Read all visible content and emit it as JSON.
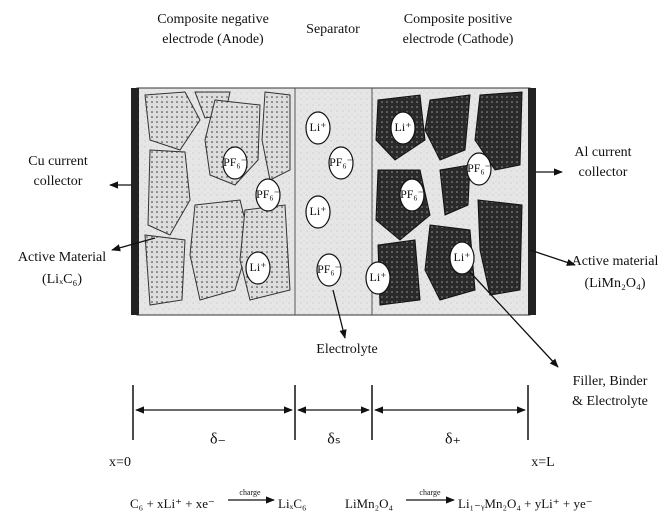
{
  "headers": {
    "anode": [
      "Composite negative",
      "electrode (Anode)"
    ],
    "separator": "Separator",
    "cathode": [
      "Composite positive",
      "electrode (Cathode)"
    ]
  },
  "labels": {
    "cu_collector": [
      "Cu current",
      "collector"
    ],
    "al_collector": [
      "Al current",
      "collector"
    ],
    "anode_material": [
      "Active Material",
      "(LiₓC₆)"
    ],
    "cathode_material": [
      "Active material",
      "(LiMn₂O₄)"
    ],
    "electrolyte": "Electrolyte",
    "filler": [
      "Filler, Binder",
      "& Electrolyte"
    ]
  },
  "ions": [
    "PF₆⁻",
    "PF₆⁻",
    "Li⁺",
    "Li⁺",
    "PF₆⁻",
    "Li⁺",
    "PF₆⁻",
    "Li⁺",
    "PF₆⁻",
    "PF₆⁻",
    "Li⁺",
    "Li⁺"
  ],
  "dimensions": {
    "x0": "x=0",
    "xL": "x=L",
    "delta_minus": "δ₋",
    "delta_s": "δₛ",
    "delta_plus": "δ₊"
  },
  "equations": {
    "anode": {
      "left": "C₆ + xLi⁺ + xe⁻",
      "arrow": "charge",
      "right": "LiₓC₆"
    },
    "cathode": {
      "left": "LiMn₂O₄",
      "arrow": "charge",
      "right": "Li₁₋ᵧMn₂O₄ + yLi⁺ + ye⁻"
    }
  }
}
